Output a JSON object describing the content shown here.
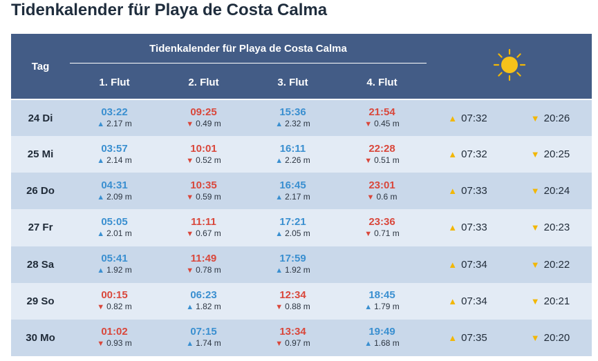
{
  "page_title": "Tidenkalender für Playa de Costa Calma",
  "table": {
    "header": {
      "day_label": "Tag",
      "group_title": "Tidenkalender für Playa de Costa Calma",
      "flut_labels": [
        "1. Flut",
        "2. Flut",
        "3. Flut",
        "4. Flut"
      ],
      "sun_icon": "sun-icon"
    },
    "colors": {
      "header_bg": "#435c86",
      "row_odd_bg": "#c9d8ea",
      "row_even_bg": "#e3ebf5",
      "high_tide": "#3a8fd0",
      "low_tide": "#d9473b",
      "sun": "#f2b705"
    },
    "rows": [
      {
        "day": "24 Di",
        "tides": [
          {
            "time": "03:22",
            "height": "2.17 m",
            "type": "high"
          },
          {
            "time": "09:25",
            "height": "0.49 m",
            "type": "low"
          },
          {
            "time": "15:36",
            "height": "2.32 m",
            "type": "high"
          },
          {
            "time": "21:54",
            "height": "0.45 m",
            "type": "low"
          }
        ],
        "sunrise": "07:32",
        "sunset": "20:26"
      },
      {
        "day": "25 Mi",
        "tides": [
          {
            "time": "03:57",
            "height": "2.14 m",
            "type": "high"
          },
          {
            "time": "10:01",
            "height": "0.52 m",
            "type": "low"
          },
          {
            "time": "16:11",
            "height": "2.26 m",
            "type": "high"
          },
          {
            "time": "22:28",
            "height": "0.51 m",
            "type": "low"
          }
        ],
        "sunrise": "07:32",
        "sunset": "20:25"
      },
      {
        "day": "26 Do",
        "tides": [
          {
            "time": "04:31",
            "height": "2.09 m",
            "type": "high"
          },
          {
            "time": "10:35",
            "height": "0.59 m",
            "type": "low"
          },
          {
            "time": "16:45",
            "height": "2.17 m",
            "type": "high"
          },
          {
            "time": "23:01",
            "height": "0.6 m",
            "type": "low"
          }
        ],
        "sunrise": "07:33",
        "sunset": "20:24"
      },
      {
        "day": "27 Fr",
        "tides": [
          {
            "time": "05:05",
            "height": "2.01 m",
            "type": "high"
          },
          {
            "time": "11:11",
            "height": "0.67 m",
            "type": "low"
          },
          {
            "time": "17:21",
            "height": "2.05 m",
            "type": "high"
          },
          {
            "time": "23:36",
            "height": "0.71 m",
            "type": "low"
          }
        ],
        "sunrise": "07:33",
        "sunset": "20:23"
      },
      {
        "day": "28 Sa",
        "tides": [
          {
            "time": "05:41",
            "height": "1.92 m",
            "type": "high"
          },
          {
            "time": "11:49",
            "height": "0.78 m",
            "type": "low"
          },
          {
            "time": "17:59",
            "height": "1.92 m",
            "type": "high"
          },
          null
        ],
        "sunrise": "07:34",
        "sunset": "20:22"
      },
      {
        "day": "29 So",
        "tides": [
          {
            "time": "00:15",
            "height": "0.82 m",
            "type": "low"
          },
          {
            "time": "06:23",
            "height": "1.82 m",
            "type": "high"
          },
          {
            "time": "12:34",
            "height": "0.88 m",
            "type": "low"
          },
          {
            "time": "18:45",
            "height": "1.79 m",
            "type": "high"
          }
        ],
        "sunrise": "07:34",
        "sunset": "20:21"
      },
      {
        "day": "30 Mo",
        "tides": [
          {
            "time": "01:02",
            "height": "0.93 m",
            "type": "low"
          },
          {
            "time": "07:15",
            "height": "1.74 m",
            "type": "high"
          },
          {
            "time": "13:34",
            "height": "0.97 m",
            "type": "low"
          },
          {
            "time": "19:49",
            "height": "1.68 m",
            "type": "high"
          }
        ],
        "sunrise": "07:35",
        "sunset": "20:20"
      }
    ]
  }
}
